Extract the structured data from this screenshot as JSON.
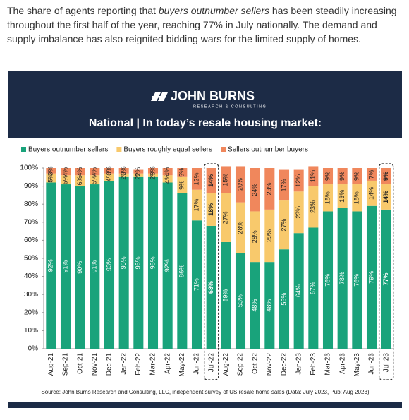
{
  "intro": [
    "The share of agents reporting that ",
    "buyers outnumber sellers",
    " has been steadily increasing throughout the first half of the year, reaching 77% in July nationally. The demand and supply imbalance has also reignited bidding wars for the limited supply of homes."
  ],
  "logo": {
    "name": "JOHN BURNS",
    "tagline": "RESEARCH & CONSULTING"
  },
  "chart_data": {
    "type": "stacked_bar",
    "title": "National | In today’s resale housing market:",
    "source": "Source: John Burns Research and Consulting, LLC, independent survey of US resale home sales (Data: July 2023, Pub: Aug 2023)",
    "categories": [
      "Aug-21",
      "Sep-21",
      "Oct-21",
      "Nov-21",
      "Dec-21",
      "Jan-22",
      "Feb-22",
      "Mar-22",
      "Apr-22",
      "May-22",
      "Jun-22",
      "Jul-22",
      "Aug-22",
      "Sep-22",
      "Oct-22",
      "Nov-22",
      "Dec-22",
      "Jan-23",
      "Feb-23",
      "Mar-23",
      "Apr-23",
      "May-23",
      "Jun-23",
      "Jul-23"
    ],
    "series": [
      {
        "name": "Buyers outnumber sellers",
        "color": "#19a37b",
        "values": [
          92,
          91,
          90,
          91,
          93,
          95,
          95,
          95,
          92,
          86,
          71,
          68,
          59,
          53,
          48,
          48,
          55,
          64,
          67,
          76,
          78,
          76,
          79,
          77
        ],
        "value_labels": [
          "92%",
          "91%",
          "90%",
          "91%",
          "93%",
          "95%",
          "95%",
          "95%",
          "92%",
          "86%",
          "71%",
          "68%",
          "59%",
          "53%",
          "48%",
          "48%",
          "55%",
          "64%",
          "67%",
          "76%",
          "78%",
          "76%",
          "79%",
          "77%"
        ]
      },
      {
        "name": "Buyers roughly equal sellers",
        "color": "#f8c96c",
        "values": [
          5,
          5,
          6,
          5,
          4,
          2,
          2,
          2,
          4,
          9,
          17,
          18,
          27,
          28,
          28,
          29,
          27,
          23,
          23,
          15,
          13,
          15,
          14,
          14
        ],
        "value_labels": [
          "5%",
          "5%",
          "6%",
          "5%",
          "4%",
          "2%",
          "2%",
          "2%",
          "4%",
          "9%",
          "17%",
          "18%",
          "27%",
          "28%",
          "28%",
          "29%",
          "27%",
          "23%",
          "23%",
          "15%",
          "13%",
          "15%",
          "14%",
          "14%"
        ]
      },
      {
        "name": "Sellers outnumber buyers",
        "color": "#f0875c",
        "values": [
          3,
          4,
          4,
          4,
          3,
          3,
          2,
          3,
          4,
          5,
          12,
          14,
          15,
          20,
          24,
          23,
          17,
          12,
          11,
          9,
          9,
          9,
          7,
          9
        ],
        "value_labels": [
          "3%",
          "4%",
          "4%",
          "4%",
          "3%",
          "3%",
          "2%",
          "3%",
          "4%",
          "5%",
          "12%",
          "14%",
          "15%",
          "20%",
          "24%",
          "23%",
          "17%",
          "12%",
          "11%",
          "9%",
          "9%",
          "9%",
          "7%",
          "9%"
        ]
      }
    ],
    "ylim": [
      0,
      100
    ],
    "yticks": [
      {
        "value": 0,
        "label": "0%"
      },
      {
        "value": 10,
        "label": "10%"
      },
      {
        "value": 20,
        "label": "20%"
      },
      {
        "value": 30,
        "label": "30%"
      },
      {
        "value": 40,
        "label": "40%"
      },
      {
        "value": 50,
        "label": "50%"
      },
      {
        "value": 60,
        "label": "60%"
      },
      {
        "value": 70,
        "label": "70%"
      },
      {
        "value": 80,
        "label": "80%"
      },
      {
        "value": 90,
        "label": "90%"
      },
      {
        "value": 100,
        "label": "100%"
      }
    ],
    "highlighted": [
      11,
      23
    ]
  }
}
